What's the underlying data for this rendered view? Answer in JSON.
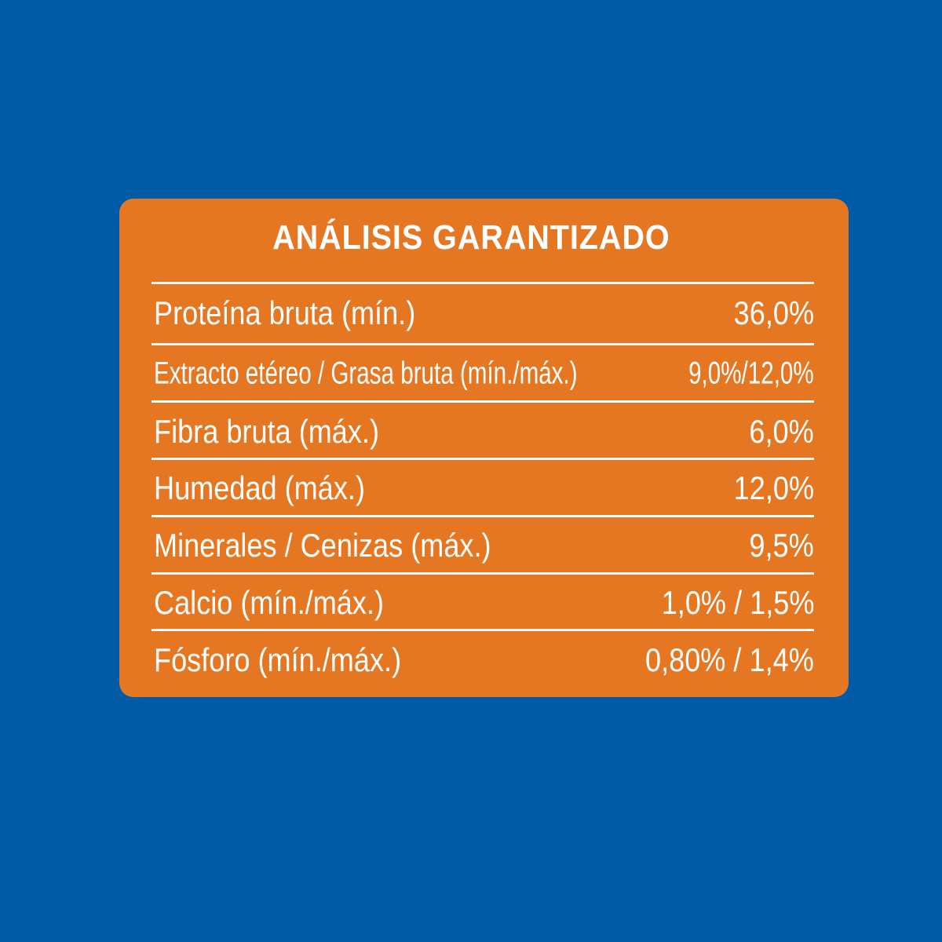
{
  "title": "ANÁLISIS GARANTIZADO",
  "rows": [
    {
      "label": "Proteína bruta (mín.)",
      "value": "36,0%"
    },
    {
      "label": "Extracto etéreo / Grasa bruta (mín./máx.)",
      "value": "9,0%/12,0%"
    },
    {
      "label": "Fibra bruta (máx.)",
      "value": "6,0%"
    },
    {
      "label": "Humedad (máx.)",
      "value": "12,0%"
    },
    {
      "label": "Minerales / Cenizas (máx.)",
      "value": "9,5%"
    },
    {
      "label": "Calcio (mín./máx.)",
      "value": "1,0% / 1,5%"
    },
    {
      "label": "Fósforo (mín./máx.)",
      "value": "0,80% / 1,4%"
    }
  ],
  "colors": {
    "background": "#005BA6",
    "panel": "#E67722",
    "text": "#FFFFFF"
  }
}
